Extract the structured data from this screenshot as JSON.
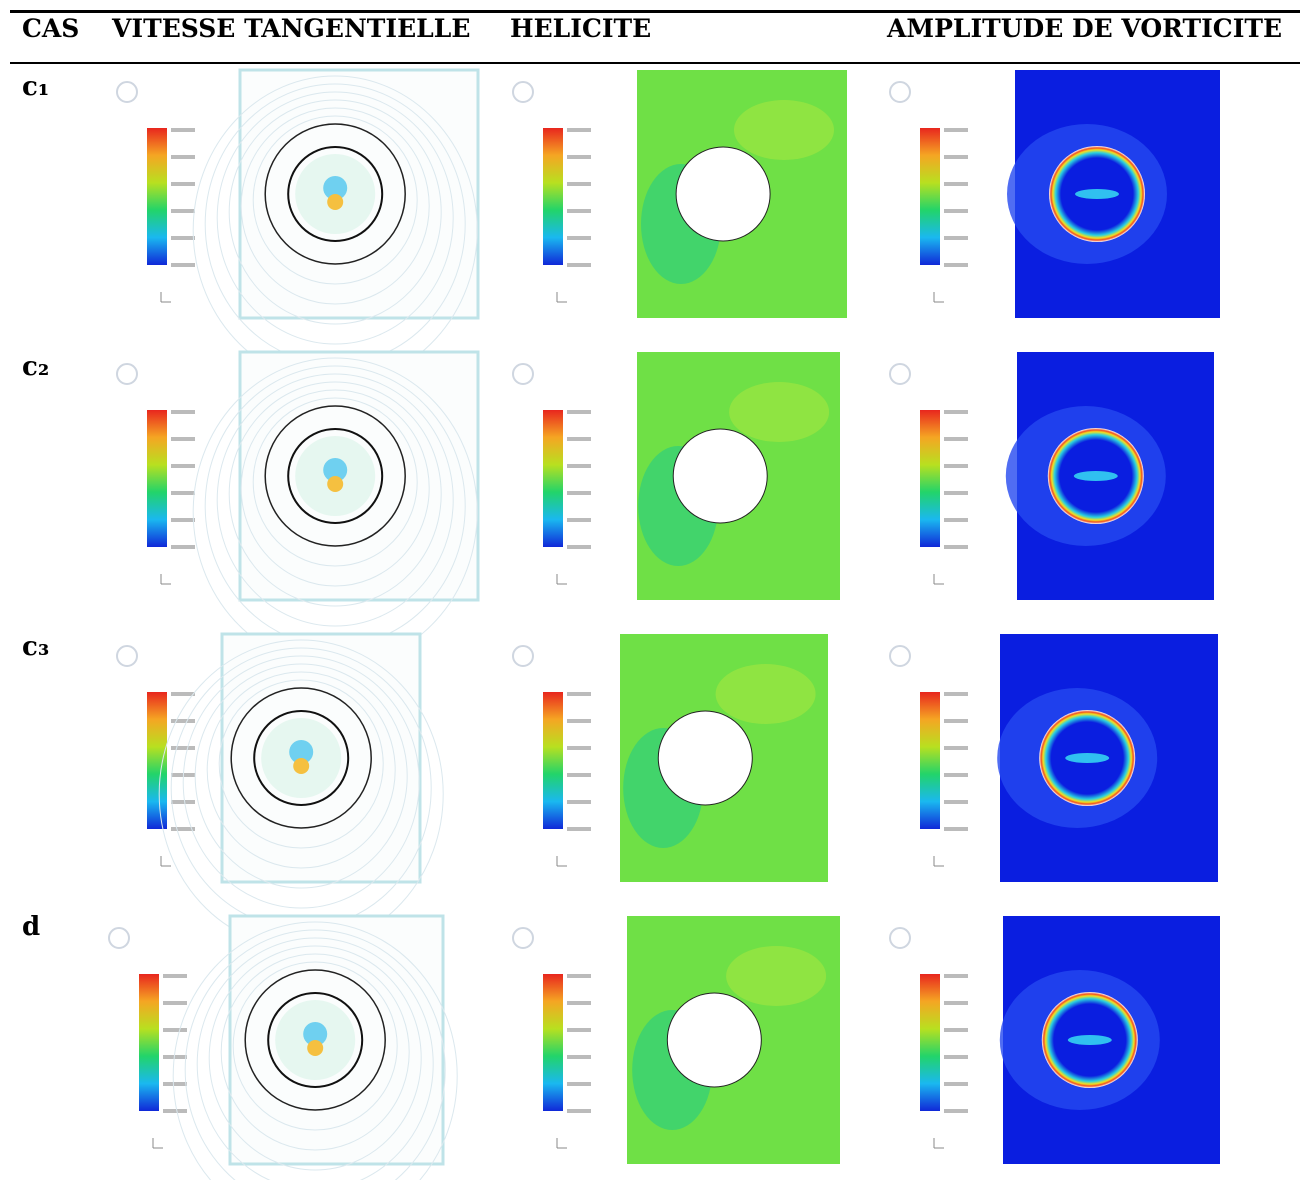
{
  "table": {
    "headers": [
      "CAS",
      "VITESSE TANGENTIELLE",
      "HELICITE",
      "AMPLITUDE DE VORTICITE"
    ],
    "rows": [
      [
        "c₁"
      ],
      [
        "c₂"
      ],
      [
        "c₃"
      ],
      [
        "d"
      ]
    ]
  }
}
